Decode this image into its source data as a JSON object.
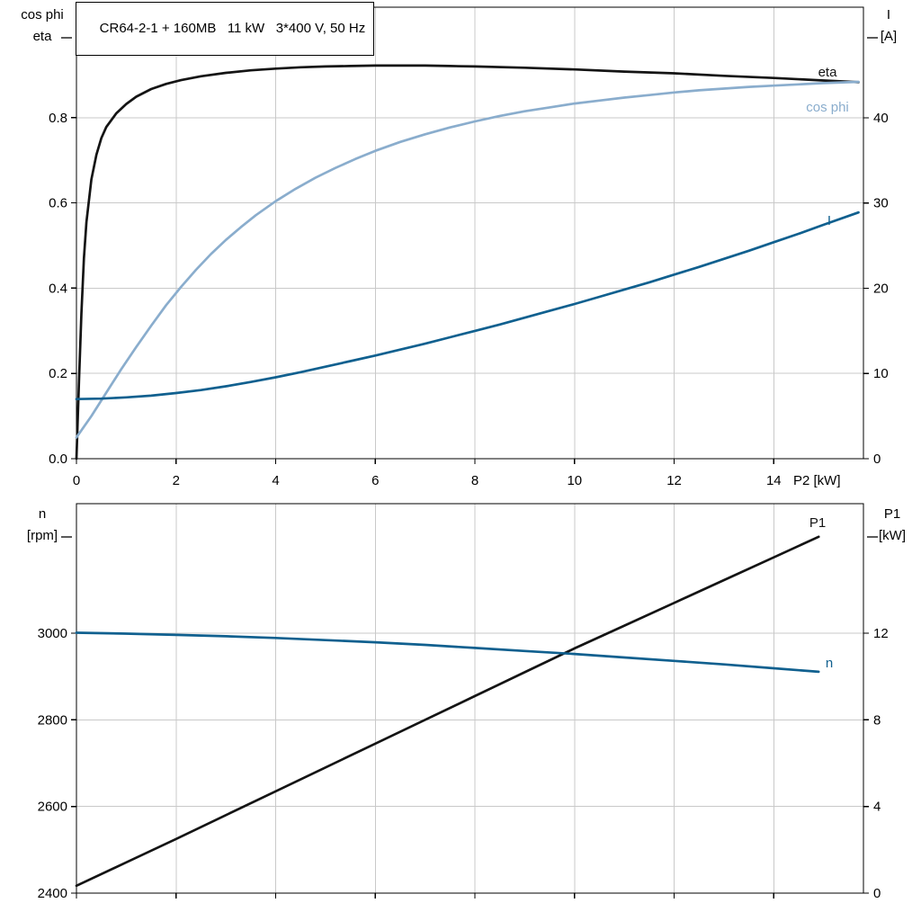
{
  "title": "CR64-2-1 + 160MB   11 kW   3*400 V, 50 Hz",
  "colors": {
    "curve_black": "#141414",
    "curve_light_blue": "#8aadcd",
    "curve_dark_blue": "#10608f",
    "grid": "#c9c9c9",
    "axis": "#000000",
    "background": "#ffffff"
  },
  "chart_data": [
    {
      "type": "line",
      "name": "motor-efficiency-chart",
      "xlabel": "P2 [kW]",
      "ylabel_left_lines": [
        "cos phi",
        "eta"
      ],
      "ylabel_right_lines": [
        "I",
        "[A]"
      ],
      "xlim": [
        0,
        15.8
      ],
      "yleft_lim": [
        0,
        1.059
      ],
      "yright_lim": [
        0,
        52.98
      ],
      "x_ticks": [
        0,
        2,
        4,
        6,
        8,
        10,
        12,
        14
      ],
      "yleft_ticks": [
        {
          "label": "0.0",
          "value": 0.0
        },
        {
          "label": "0.2",
          "value": 0.2
        },
        {
          "label": "0.4",
          "value": 0.4
        },
        {
          "label": "0.6",
          "value": 0.6
        },
        {
          "label": "0.8",
          "value": 0.8
        }
      ],
      "yright_ticks": [
        {
          "label": "0",
          "value": 0
        },
        {
          "label": "10",
          "value": 10
        },
        {
          "label": "20",
          "value": 20
        },
        {
          "label": "30",
          "value": 30
        },
        {
          "label": "40",
          "value": 40
        }
      ],
      "series": [
        {
          "name": "eta",
          "axis": "left",
          "color": "curve_black",
          "points": [
            [
              0,
              0
            ],
            [
              0.05,
              0.18
            ],
            [
              0.1,
              0.34
            ],
            [
              0.15,
              0.47
            ],
            [
              0.2,
              0.555
            ],
            [
              0.3,
              0.655
            ],
            [
              0.4,
              0.713
            ],
            [
              0.5,
              0.752
            ],
            [
              0.6,
              0.778
            ],
            [
              0.8,
              0.81
            ],
            [
              1,
              0.832
            ],
            [
              1.2,
              0.849
            ],
            [
              1.5,
              0.867
            ],
            [
              1.8,
              0.879
            ],
            [
              2.1,
              0.888
            ],
            [
              2.5,
              0.897
            ],
            [
              3,
              0.905
            ],
            [
              3.5,
              0.911
            ],
            [
              4,
              0.915
            ],
            [
              4.5,
              0.918
            ],
            [
              5,
              0.92
            ],
            [
              5.5,
              0.921
            ],
            [
              6,
              0.922
            ],
            [
              6.5,
              0.922
            ],
            [
              7,
              0.922
            ],
            [
              7.5,
              0.921
            ],
            [
              8,
              0.92
            ],
            [
              9,
              0.917
            ],
            [
              10,
              0.913
            ],
            [
              11,
              0.908
            ],
            [
              12,
              0.904
            ],
            [
              13,
              0.898
            ],
            [
              14,
              0.893
            ],
            [
              15,
              0.887
            ],
            [
              15.7,
              0.883
            ]
          ]
        },
        {
          "name": "cos phi",
          "axis": "left",
          "color": "curve_light_blue",
          "points": [
            [
              0,
              0.05
            ],
            [
              0.3,
              0.1
            ],
            [
              0.6,
              0.155
            ],
            [
              0.9,
              0.21
            ],
            [
              1.2,
              0.262
            ],
            [
              1.5,
              0.312
            ],
            [
              1.8,
              0.36
            ],
            [
              2.1,
              0.403
            ],
            [
              2.4,
              0.443
            ],
            [
              2.7,
              0.48
            ],
            [
              3,
              0.513
            ],
            [
              3.3,
              0.543
            ],
            [
              3.6,
              0.571
            ],
            [
              4,
              0.604
            ],
            [
              4.4,
              0.633
            ],
            [
              4.8,
              0.659
            ],
            [
              5.2,
              0.682
            ],
            [
              5.6,
              0.703
            ],
            [
              6,
              0.722
            ],
            [
              6.5,
              0.743
            ],
            [
              7,
              0.761
            ],
            [
              7.5,
              0.777
            ],
            [
              8,
              0.791
            ],
            [
              8.5,
              0.804
            ],
            [
              9,
              0.815
            ],
            [
              9.5,
              0.824
            ],
            [
              10,
              0.833
            ],
            [
              10.5,
              0.84
            ],
            [
              11,
              0.847
            ],
            [
              11.5,
              0.853
            ],
            [
              12,
              0.859
            ],
            [
              12.5,
              0.864
            ],
            [
              13,
              0.868
            ],
            [
              13.5,
              0.872
            ],
            [
              14,
              0.875
            ],
            [
              14.5,
              0.878
            ],
            [
              15,
              0.881
            ],
            [
              15.7,
              0.884
            ]
          ]
        },
        {
          "name": "I",
          "axis": "right",
          "color": "curve_dark_blue",
          "points": [
            [
              0,
              7.0
            ],
            [
              0.5,
              7.05
            ],
            [
              1,
              7.2
            ],
            [
              1.5,
              7.4
            ],
            [
              2,
              7.7
            ],
            [
              2.5,
              8.05
            ],
            [
              3,
              8.5
            ],
            [
              3.5,
              9.0
            ],
            [
              4,
              9.55
            ],
            [
              4.5,
              10.15
            ],
            [
              5,
              10.8
            ],
            [
              5.5,
              11.45
            ],
            [
              6,
              12.1
            ],
            [
              6.5,
              12.8
            ],
            [
              7,
              13.5
            ],
            [
              7.5,
              14.25
            ],
            [
              8,
              15.0
            ],
            [
              8.5,
              15.75
            ],
            [
              9,
              16.55
            ],
            [
              9.5,
              17.35
            ],
            [
              10,
              18.15
            ],
            [
              10.5,
              19.0
            ],
            [
              11,
              19.85
            ],
            [
              11.5,
              20.7
            ],
            [
              12,
              21.6
            ],
            [
              12.5,
              22.5
            ],
            [
              13,
              23.45
            ],
            [
              13.5,
              24.4
            ],
            [
              14,
              25.4
            ],
            [
              14.5,
              26.4
            ],
            [
              15,
              27.45
            ],
            [
              15.7,
              28.9
            ]
          ]
        }
      ]
    },
    {
      "type": "line",
      "name": "speed-power-chart",
      "xlabel": "",
      "ylabel_left_lines": [
        "n",
        "[rpm]"
      ],
      "ylabel_right_lines": [
        "P1",
        "[kW]"
      ],
      "xlim": [
        0,
        15.8
      ],
      "yleft_lim": [
        2400,
        3299
      ],
      "yright_lim": [
        0,
        17.98
      ],
      "x_ticks": [
        0,
        2,
        4,
        6,
        8,
        10,
        12,
        14
      ],
      "yleft_ticks": [
        {
          "label": "2400",
          "value": 2400
        },
        {
          "label": "2600",
          "value": 2600
        },
        {
          "label": "2800",
          "value": 2800
        },
        {
          "label": "3000",
          "value": 3000
        }
      ],
      "yright_ticks": [
        {
          "label": "0",
          "value": 0
        },
        {
          "label": "4",
          "value": 4
        },
        {
          "label": "8",
          "value": 8
        },
        {
          "label": "12",
          "value": 12
        }
      ],
      "series": [
        {
          "name": "P1",
          "axis": "right",
          "color": "curve_black",
          "points": [
            [
              0,
              0.34
            ],
            [
              1,
              1.42
            ],
            [
              2,
              2.5
            ],
            [
              3,
              3.6
            ],
            [
              4,
              4.7
            ],
            [
              5,
              5.8
            ],
            [
              6,
              6.9
            ],
            [
              7,
              8.0
            ],
            [
              8,
              9.1
            ],
            [
              9,
              10.2
            ],
            [
              10,
              11.3
            ],
            [
              11,
              12.35
            ],
            [
              12,
              13.4
            ],
            [
              13,
              14.45
            ],
            [
              14,
              15.5
            ],
            [
              14.9,
              16.45
            ]
          ]
        },
        {
          "name": "n",
          "axis": "left",
          "color": "curve_dark_blue",
          "points": [
            [
              0,
              3001
            ],
            [
              1,
              2999
            ],
            [
              2,
              2996
            ],
            [
              3,
              2993
            ],
            [
              4,
              2989
            ],
            [
              5,
              2984
            ],
            [
              6,
              2979
            ],
            [
              7,
              2973
            ],
            [
              8,
              2966
            ],
            [
              9,
              2959
            ],
            [
              10,
              2952
            ],
            [
              11,
              2944
            ],
            [
              12,
              2936
            ],
            [
              13,
              2928
            ],
            [
              14,
              2919
            ],
            [
              14.9,
              2911
            ]
          ]
        }
      ]
    }
  ]
}
